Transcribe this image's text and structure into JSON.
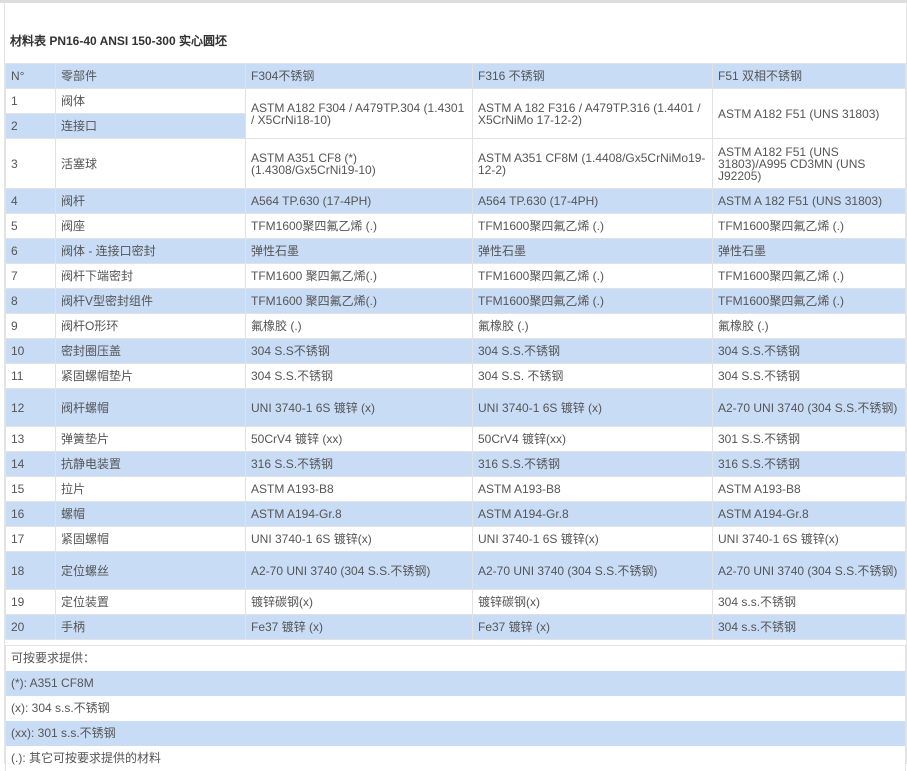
{
  "title": "材料表    PN16-40 ANSI 150-300 实心圆坯",
  "headers": [
    "N°",
    "零部件",
    "F304不锈钢",
    "F316 不锈钢",
    "F51 双相不锈钢"
  ],
  "rows": [
    {
      "n": "1",
      "part": "阀体",
      "f304": "ASTM A182 F304 / A479TP.304 (1.4301 / X5CrNi18-10)",
      "f316": "ASTM A 182 F316 / A479TP.316 (1.4401 / X5CrNiMo 17-12-2)",
      "f51": "ASTM A182 F51 (UNS 31803)"
    },
    {
      "n": "2",
      "part": "连接口"
    },
    {
      "n": "3",
      "part": "活塞球",
      "f304": "ASTM A351 CF8 (*) (1.4308/Gx5CrNi19-10)",
      "f316": "ASTM A351 CF8M (1.4408/Gx5CrNiMo19-12-2)",
      "f51": "ASTM A182 F51 (UNS 31803)/A995 CD3MN (UNS J92205)"
    },
    {
      "n": "4",
      "part": "阀杆",
      "f304": "A564 TP.630 (17-4PH)",
      "f316": "A564 TP.630 (17-4PH)",
      "f51": "ASTM A 182 F51 (UNS 31803)"
    },
    {
      "n": "5",
      "part": "阀座",
      "f304": "TFM1600聚四氟乙烯 (.)",
      "f316": "TFM1600聚四氟乙烯 (.)",
      "f51": "TFM1600聚四氟乙烯 (.)"
    },
    {
      "n": "6",
      "part": "阀体 - 连接口密封",
      "f304": "弹性石墨",
      "f316": "弹性石墨",
      "f51": "弹性石墨"
    },
    {
      "n": "7",
      "part": "阀杆下端密封",
      "f304": "TFM1600 聚四氟乙烯(.)",
      "f316": "TFM1600聚四氟乙烯 (.)",
      "f51": "TFM1600聚四氟乙烯 (.)"
    },
    {
      "n": "8",
      "part": "阀杆V型密封组件",
      "f304": "TFM1600 聚四氟乙烯(.)",
      "f316": "TFM1600聚四氟乙烯 (.)",
      "f51": "TFM1600聚四氟乙烯 (.)"
    },
    {
      "n": "9",
      "part": "阀杆O形环",
      "f304": "氟橡胶 (.)",
      "f316": "氟橡胶 (.)",
      "f51": "氟橡胶 (.)"
    },
    {
      "n": "10",
      "part": "密封圈压盖",
      "f304": "304 S.S不锈钢",
      "f316": "304 S.S.不锈钢",
      "f51": "304 S.S.不锈钢"
    },
    {
      "n": "11",
      "part": "紧固螺帽垫片",
      "f304": "304 S.S.不锈钢",
      "f316": "304 S.S. 不锈钢",
      "f51": "304 S.S.不锈钢"
    },
    {
      "n": "12",
      "part": "阀杆螺帽",
      "f304": "UNI 3740-1 6S 镀锌 (x)",
      "f316": "UNI 3740-1 6S 镀锌 (x)",
      "f51": "A2-70 UNI 3740 (304 S.S.不锈钢)"
    },
    {
      "n": "13",
      "part": "弹簧垫片",
      "f304": "50CrV4 镀锌 (xx)",
      "f316": "50CrV4 镀锌(xx)",
      "f51": "301 S.S.不锈钢"
    },
    {
      "n": "14",
      "part": "抗静电装置",
      "f304": "316 S.S.不锈钢",
      "f316": "316 S.S.不锈钢",
      "f51": "316 S.S.不锈钢"
    },
    {
      "n": "15",
      "part": "拉片",
      "f304": "ASTM A193-B8",
      "f316": "ASTM A193-B8",
      "f51": "ASTM A193-B8"
    },
    {
      "n": "16",
      "part": "螺帽",
      "f304": "ASTM A194-Gr.8",
      "f316": "ASTM A194-Gr.8",
      "f51": "ASTM A194-Gr.8"
    },
    {
      "n": "17",
      "part": "紧固螺帽",
      "f304": "UNI 3740-1 6S 镀锌(x)",
      "f316": "UNI 3740-1 6S 镀锌(x)",
      "f51": "UNI 3740-1 6S 镀锌(x)"
    },
    {
      "n": "18",
      "part": "定位螺丝",
      "f304": "A2-70 UNI 3740 (304 S.S.不锈钢)",
      "f316": "A2-70 UNI 3740 (304 S.S.不锈钢)",
      "f51": "A2-70 UNI 3740 (304 S.S.不锈钢)"
    },
    {
      "n": "19",
      "part": "定位装置",
      "f304": "镀锌碳钢(x)",
      "f316": "镀锌碳钢(x)",
      "f51": "304 s.s.不锈钢"
    },
    {
      "n": "20",
      "part": "手柄",
      "f304": "Fe37 镀锌 (x)",
      "f316": "Fe37 镀锌 (x)",
      "f51": "304 s.s.不锈钢"
    }
  ],
  "notes": [
    "可按要求提供：",
    "(*): A351 CF8M",
    "(x): 304 s.s.不锈钢",
    "(xx): 301 s.s.不锈钢",
    "(.): 其它可按要求提供的材料"
  ],
  "colors": {
    "stripe": "#c9dcf6",
    "text": "#555555"
  }
}
